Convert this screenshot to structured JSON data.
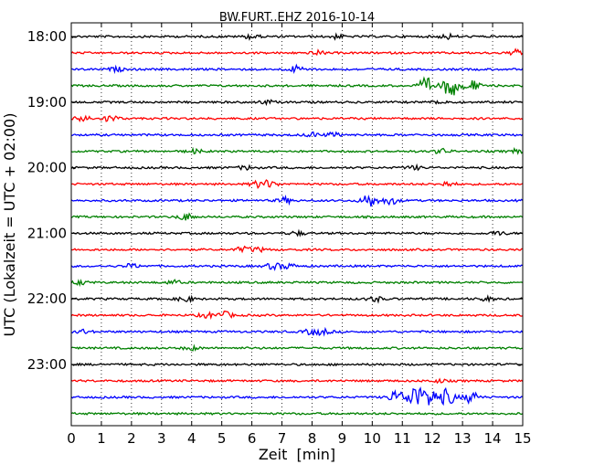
{
  "chart_data": {
    "type": "line",
    "title": "BW.FURT..EHZ 2016-10-14",
    "xlabel": "Zeit  [min]",
    "ylabel": "UTC (Lokalzeit = UTC + 02:00)",
    "xlim": [
      0,
      15
    ],
    "x_ticks": [
      "0",
      "1",
      "2",
      "3",
      "4",
      "5",
      "6",
      "7",
      "8",
      "9",
      "10",
      "11",
      "12",
      "13",
      "14",
      "15"
    ],
    "y_ticks": [
      "18:00",
      "19:00",
      "20:00",
      "21:00",
      "22:00",
      "23:00"
    ],
    "grid_vertical": "dotted",
    "trace_colors": [
      "#000000",
      "#ff0000",
      "#0000ff",
      "#008000"
    ],
    "trace_interval_minutes": 15,
    "traces": [
      {
        "start": "18:00",
        "color": "#000000",
        "events": [
          [
            6.0,
            2.5
          ],
          [
            8.8,
            2.0
          ],
          [
            12.5,
            2.5
          ]
        ]
      },
      {
        "start": "18:15",
        "color": "#ff0000",
        "events": [
          [
            8.2,
            2.0
          ],
          [
            14.8,
            3.0
          ]
        ]
      },
      {
        "start": "18:30",
        "color": "#0000ff",
        "events": [
          [
            1.5,
            2.0
          ],
          [
            7.5,
            3.5
          ]
        ]
      },
      {
        "start": "18:45",
        "color": "#008000",
        "events": [
          [
            11.8,
            8.0
          ],
          [
            12.6,
            12.0
          ],
          [
            13.3,
            6.0
          ]
        ]
      },
      {
        "start": "19:00",
        "color": "#000000",
        "events": [
          [
            6.5,
            2.0
          ],
          [
            12.3,
            2.0
          ]
        ]
      },
      {
        "start": "19:15",
        "color": "#ff0000",
        "events": [
          [
            0.4,
            3.0
          ],
          [
            1.3,
            3.5
          ]
        ]
      },
      {
        "start": "19:30",
        "color": "#0000ff",
        "events": [
          [
            8.0,
            2.5
          ],
          [
            8.7,
            2.0
          ]
        ]
      },
      {
        "start": "19:45",
        "color": "#008000",
        "events": [
          [
            4.1,
            2.0
          ],
          [
            12.3,
            2.5
          ],
          [
            14.8,
            2.0
          ]
        ]
      },
      {
        "start": "20:00",
        "color": "#000000",
        "events": [
          [
            5.8,
            2.0
          ],
          [
            11.4,
            2.0
          ]
        ]
      },
      {
        "start": "20:15",
        "color": "#ff0000",
        "events": [
          [
            6.2,
            3.0
          ],
          [
            6.6,
            3.5
          ],
          [
            12.5,
            2.5
          ]
        ]
      },
      {
        "start": "20:30",
        "color": "#0000ff",
        "events": [
          [
            7.1,
            3.0
          ],
          [
            9.9,
            7.5
          ],
          [
            10.6,
            4.0
          ]
        ]
      },
      {
        "start": "20:45",
        "color": "#008000",
        "events": [
          [
            3.8,
            3.5
          ]
        ]
      },
      {
        "start": "21:00",
        "color": "#000000",
        "events": [
          [
            7.5,
            2.0
          ],
          [
            14.2,
            2.0
          ]
        ]
      },
      {
        "start": "21:15",
        "color": "#ff0000",
        "events": [
          [
            5.7,
            2.5
          ],
          [
            6.2,
            2.0
          ]
        ]
      },
      {
        "start": "21:30",
        "color": "#0000ff",
        "events": [
          [
            2.0,
            2.0
          ],
          [
            6.7,
            3.0
          ],
          [
            7.2,
            2.5
          ]
        ]
      },
      {
        "start": "21:45",
        "color": "#008000",
        "events": [
          [
            0.3,
            2.0
          ],
          [
            3.4,
            2.0
          ]
        ]
      },
      {
        "start": "22:00",
        "color": "#000000",
        "events": [
          [
            3.8,
            3.0
          ],
          [
            10.1,
            2.5
          ],
          [
            13.8,
            2.0
          ]
        ]
      },
      {
        "start": "22:15",
        "color": "#ff0000",
        "events": [
          [
            4.5,
            2.5
          ],
          [
            5.1,
            3.5
          ]
        ]
      },
      {
        "start": "22:30",
        "color": "#0000ff",
        "events": [
          [
            8.0,
            3.0
          ],
          [
            8.4,
            2.5
          ],
          [
            0.4,
            2.0
          ]
        ]
      },
      {
        "start": "22:45",
        "color": "#008000",
        "events": [
          [
            4.0,
            2.0
          ]
        ]
      },
      {
        "start": "23:00",
        "color": "#000000",
        "events": []
      },
      {
        "start": "23:15",
        "color": "#ff0000",
        "events": [
          [
            12.2,
            1.5
          ]
        ]
      },
      {
        "start": "23:30",
        "color": "#0000ff",
        "events": [
          [
            10.8,
            7.0
          ],
          [
            11.4,
            13.0
          ],
          [
            11.9,
            10.0
          ],
          [
            12.5,
            9.0
          ],
          [
            13.3,
            6.0
          ]
        ]
      },
      {
        "start": "23:45",
        "color": "#008000",
        "events": []
      }
    ]
  }
}
